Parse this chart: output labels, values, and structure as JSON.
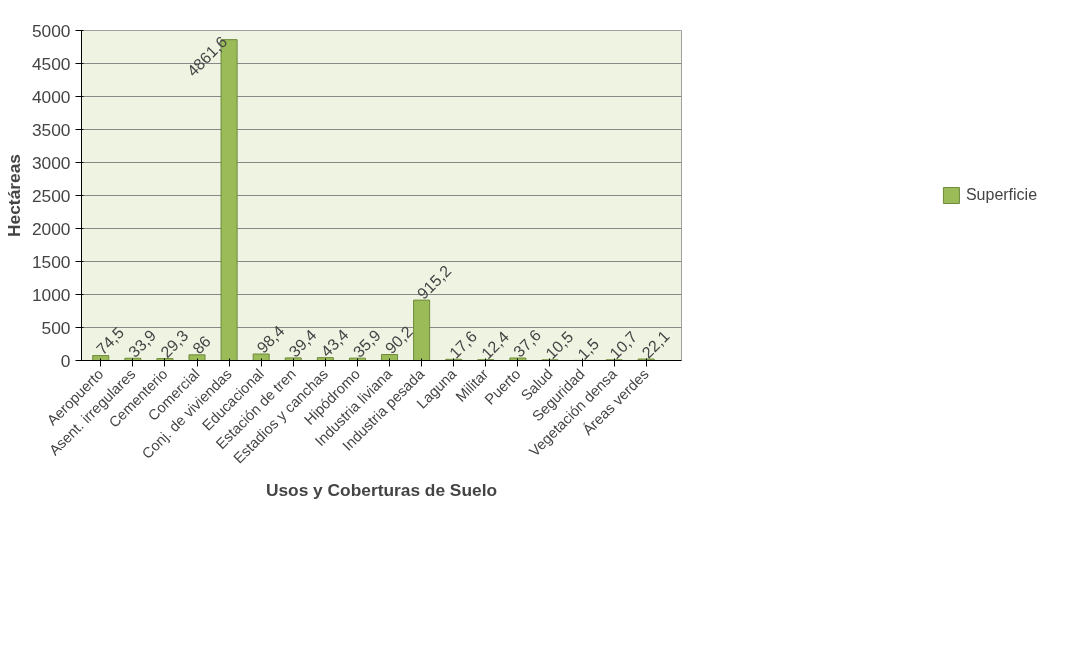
{
  "chart_data": {
    "type": "bar",
    "xlabel": "Usos y Coberturas de Suelo",
    "ylabel": "Hectáreas",
    "categories": [
      "Aeropuerto",
      "Asent. irregulares",
      "Cementerio",
      "Comercial",
      "Conj. de viviendas",
      "Educacional",
      "Estación de tren",
      "Estadios y canchas",
      "Hipódromo",
      "Industria liviana",
      "Industria pesada",
      "Laguna",
      "Militar",
      "Puerto",
      "Salud",
      "Seguridad",
      "Vegetación densa",
      "Áreas verdes"
    ],
    "series": [
      {
        "name": "Superficie",
        "color": "#9bbb59",
        "values": [
          74.5,
          33.9,
          29.3,
          86,
          4861.6,
          98.4,
          39.4,
          43.4,
          35.9,
          90.2,
          915.2,
          17.6,
          12.4,
          37.6,
          10.5,
          1.5,
          10.7,
          22.1
        ],
        "value_labels": [
          "74,5",
          "33,9",
          "29,3",
          "86",
          "4861,6",
          "98,4",
          "39,4",
          "43,4",
          "35,9",
          "90,2",
          "915,2",
          "17,6",
          "12,4",
          "37,6",
          "10,5",
          "1,5",
          "10,7",
          "22,1"
        ]
      }
    ],
    "ylim": [
      0,
      5000
    ],
    "yticks": [
      0,
      500,
      1000,
      1500,
      2000,
      2500,
      3000,
      3500,
      4000,
      4500,
      5000
    ],
    "grid": "y",
    "legend": "right"
  }
}
